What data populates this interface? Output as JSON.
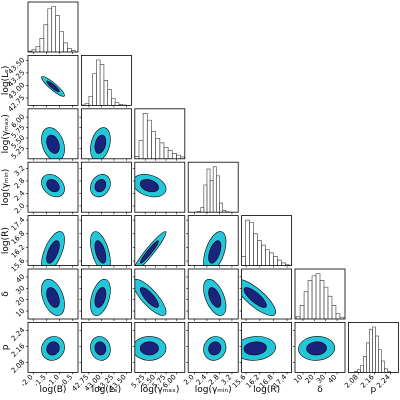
{
  "chart_data": {
    "type": "corner",
    "outer_color": "#26c6da",
    "inner_color": "#1a237e",
    "hist_color": "#555555",
    "parameters": [
      {
        "name": "log(B)",
        "lim": [
          -2.2,
          -0.3
        ],
        "ticks": [
          {
            "value": -2.0,
            "label": "-2.0"
          },
          -1.5,
          {
            "value": -1.0,
            "label": "-1.0"
          },
          -0.5
        ],
        "mean": -1.25,
        "sd": 0.22,
        "bins": [
          -2.2,
          -2.05,
          -1.9,
          -1.75,
          -1.6,
          -1.45,
          -1.3,
          -1.15,
          -1.0,
          -0.85,
          -0.7,
          -0.55,
          -0.4
        ],
        "counts": [
          2,
          5,
          12,
          30,
          60,
          95,
          100,
          80,
          45,
          20,
          8,
          3
        ]
      },
      {
        "name": "log(Lₑ)",
        "lim": [
          42.6,
          43.6
        ],
        "ticks": [
          42.75,
          {
            "value": 43.0,
            "label": "43.00"
          },
          43.25,
          {
            "value": 43.5,
            "label": "43.50"
          }
        ],
        "mean": 42.98,
        "sd": 0.1,
        "bins": [
          42.6,
          42.675,
          42.75,
          42.825,
          42.9,
          42.975,
          43.05,
          43.125,
          43.2,
          43.275,
          43.35,
          43.425,
          43.5
        ],
        "counts": [
          1,
          4,
          20,
          70,
          100,
          90,
          55,
          35,
          15,
          6,
          2,
          1
        ]
      },
      {
        "name": "log(γₘₐₓ)",
        "lim": [
          5.0,
          6.2
        ],
        "ticks": [
          5.25,
          {
            "value": 5.5,
            "label": "5.50"
          },
          5.75,
          {
            "value": 6.0,
            "label": "6.00"
          }
        ],
        "mean": 5.35,
        "sd": 0.2,
        "bins": [
          5.0,
          5.1,
          5.2,
          5.3,
          5.4,
          5.5,
          5.6,
          5.7,
          5.8,
          5.9,
          6.0,
          6.1,
          6.2
        ],
        "counts": [
          5,
          40,
          100,
          85,
          60,
          45,
          35,
          25,
          18,
          12,
          8,
          4
        ]
      },
      {
        "name": "log(γₘᵢₙ)",
        "lim": [
          1.8,
          3.4
        ],
        "ticks": [
          {
            "value": 2.0,
            "label": "2.0"
          },
          2.4,
          2.8,
          3.2
        ],
        "mean": 2.65,
        "sd": 0.18,
        "bins": [
          2.0,
          2.1,
          2.2,
          2.3,
          2.4,
          2.5,
          2.6,
          2.7,
          2.8,
          2.9,
          3.0,
          3.1,
          3.2
        ],
        "counts": [
          0,
          2,
          10,
          60,
          95,
          70,
          100,
          80,
          20,
          4,
          1,
          0
        ]
      },
      {
        "name": "log(R)",
        "lim": [
          15.4,
          17.6
        ],
        "ticks": [
          15.6,
          16.2,
          16.8,
          17.4
        ],
        "mean": 16.0,
        "sd": 0.45,
        "bins": [
          15.4,
          15.575,
          15.75,
          15.925,
          16.1,
          16.275,
          16.45,
          16.625,
          16.8,
          16.975,
          17.15,
          17.325,
          17.5
        ],
        "counts": [
          20,
          100,
          95,
          70,
          55,
          45,
          35,
          28,
          20,
          12,
          6,
          2
        ]
      },
      {
        "name": "δ",
        "lim": [
          3,
          47
        ],
        "ticks": [
          10,
          20,
          30,
          40
        ],
        "mean": 22,
        "sd": 8,
        "bins": [
          4,
          7.5,
          11,
          14.5,
          18,
          21.5,
          25,
          28.5,
          32,
          35.5,
          39,
          42.5,
          46
        ],
        "counts": [
          5,
          30,
          60,
          85,
          95,
          100,
          85,
          70,
          50,
          30,
          12,
          4
        ]
      },
      {
        "name": "p",
        "lim": [
          2.03,
          2.28
        ],
        "ticks": [
          2.08,
          2.16,
          2.24
        ],
        "mean": 2.15,
        "sd": 0.03,
        "bins": [
          2.06,
          2.075,
          2.09,
          2.105,
          2.12,
          2.135,
          2.15,
          2.165,
          2.18,
          2.195,
          2.21,
          2.225,
          2.24
        ],
        "counts": [
          2,
          6,
          15,
          35,
          65,
          95,
          100,
          80,
          50,
          25,
          8,
          2
        ]
      }
    ],
    "corr": [
      -0.9,
      -0.3,
      0.3,
      -0.3,
      0.2,
      -0.3,
      0.6,
      -0.5,
      0.95,
      0.5,
      -0.4,
      0.4,
      -0.8,
      -0.5,
      -0.8,
      0.1,
      -0.1,
      0,
      0.1,
      0.1,
      0.05
    ]
  }
}
